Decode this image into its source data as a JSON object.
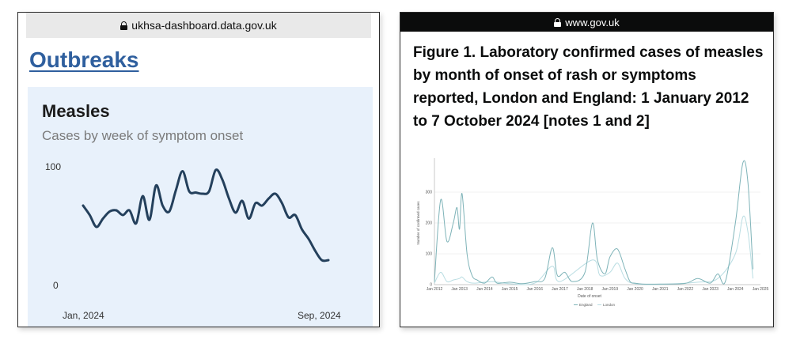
{
  "left_panel": {
    "url": "ukhsa-dashboard.data.gov.uk",
    "page_heading": "Outbreaks",
    "card_title": "Measles",
    "card_subtitle": "Cases by week of symptom onset"
  },
  "right_panel": {
    "url": "www.gov.uk",
    "figure_title": "Figure 1. Laboratory confirmed cases of measles by month of onset of rash or symptoms reported, London and England: 1 January 2012 to 7 October 2024 [notes 1 and 2]"
  },
  "colors": {
    "measles_line": "#24405c",
    "england": "#7eb3b8",
    "london": "#b9dde2",
    "card_bg": "#e8f1fb",
    "link_blue": "#2f5f9e"
  },
  "chart_data": [
    {
      "type": "line",
      "title": "Measles",
      "subtitle": "Cases by week of symptom onset",
      "x_tick_labels": [
        "Jan, 2024",
        "Sep, 2024"
      ],
      "y_tick_labels": [
        "100",
        "0"
      ],
      "ylim": [
        0,
        100
      ],
      "series": [
        {
          "values": [
            68,
            60,
            50,
            57,
            63,
            64,
            60,
            64,
            53,
            76,
            56,
            85,
            68,
            63,
            81,
            97,
            80,
            79,
            78,
            80,
            98,
            90,
            74,
            62,
            72,
            57,
            70,
            68,
            74,
            78,
            70,
            58,
            60,
            48,
            40,
            30,
            22,
            22
          ]
        }
      ],
      "grid": false
    },
    {
      "type": "line",
      "xlabel": "Date of onset",
      "ylabel": "Number of confirmed cases",
      "x_tick_labels": [
        "Jan 2012",
        "Jan 2013",
        "Jan 2014",
        "Jan 2015",
        "Jan 2016",
        "Jan 2017",
        "Jan 2018",
        "Jan 2019",
        "Jan 2020",
        "Jan 2021",
        "Jan 2022",
        "Jan 2023",
        "Jan 2024",
        "Jan 2025"
      ],
      "y_tick_labels": [
        "0",
        "100",
        "200",
        "300"
      ],
      "ylim": [
        0,
        400
      ],
      "grid": true,
      "legend": "bottom",
      "series": [
        {
          "name": "England",
          "points": [
            [
              2012.0,
              10
            ],
            [
              2012.25,
              275
            ],
            [
              2012.5,
              140
            ],
            [
              2012.75,
              200
            ],
            [
              2012.9,
              250
            ],
            [
              2013.0,
              180
            ],
            [
              2013.1,
              295
            ],
            [
              2013.3,
              100
            ],
            [
              2013.5,
              30
            ],
            [
              2013.7,
              15
            ],
            [
              2014.0,
              5
            ],
            [
              2014.3,
              25
            ],
            [
              2014.5,
              5
            ],
            [
              2015.0,
              8
            ],
            [
              2015.5,
              3
            ],
            [
              2016.0,
              10
            ],
            [
              2016.4,
              20
            ],
            [
              2016.7,
              120
            ],
            [
              2016.9,
              30
            ],
            [
              2017.2,
              40
            ],
            [
              2017.5,
              10
            ],
            [
              2018.0,
              40
            ],
            [
              2018.3,
              200
            ],
            [
              2018.5,
              80
            ],
            [
              2018.8,
              35
            ],
            [
              2019.0,
              90
            ],
            [
              2019.3,
              115
            ],
            [
              2019.6,
              50
            ],
            [
              2019.8,
              10
            ],
            [
              2020.0,
              5
            ],
            [
              2020.3,
              2
            ],
            [
              2021.0,
              2
            ],
            [
              2022.0,
              4
            ],
            [
              2022.5,
              20
            ],
            [
              2023.0,
              5
            ],
            [
              2023.3,
              35
            ],
            [
              2023.6,
              10
            ],
            [
              2024.0,
              200
            ],
            [
              2024.3,
              395
            ],
            [
              2024.5,
              330
            ],
            [
              2024.7,
              50
            ]
          ]
        },
        {
          "name": "London",
          "points": [
            [
              2012.0,
              5
            ],
            [
              2012.25,
              40
            ],
            [
              2012.5,
              10
            ],
            [
              2012.75,
              15
            ],
            [
              2013.0,
              20
            ],
            [
              2013.1,
              25
            ],
            [
              2013.3,
              10
            ],
            [
              2013.6,
              5
            ],
            [
              2014.3,
              10
            ],
            [
              2015.0,
              3
            ],
            [
              2016.0,
              5
            ],
            [
              2016.7,
              60
            ],
            [
              2017.0,
              10
            ],
            [
              2018.3,
              80
            ],
            [
              2018.6,
              30
            ],
            [
              2019.0,
              40
            ],
            [
              2019.3,
              70
            ],
            [
              2019.6,
              20
            ],
            [
              2020.0,
              3
            ],
            [
              2021.0,
              1
            ],
            [
              2022.5,
              8
            ],
            [
              2023.3,
              20
            ],
            [
              2024.0,
              100
            ],
            [
              2024.3,
              220
            ],
            [
              2024.5,
              170
            ],
            [
              2024.7,
              20
            ]
          ]
        }
      ]
    }
  ]
}
